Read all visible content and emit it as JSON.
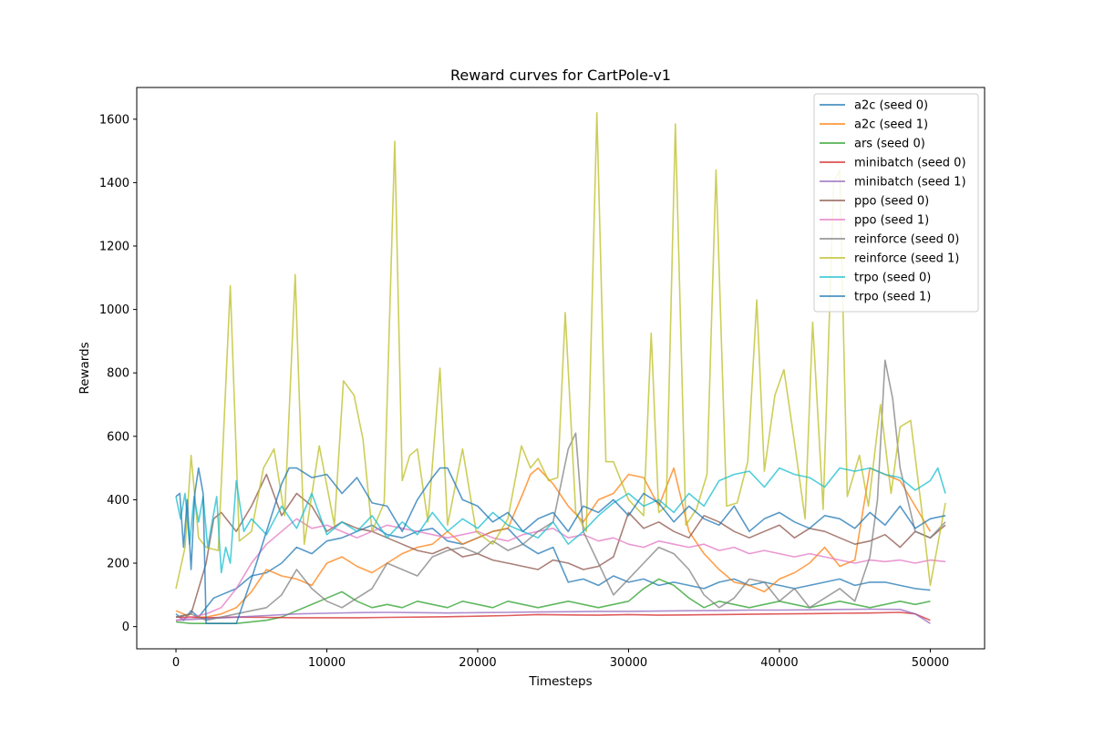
{
  "chart_data": {
    "type": "line",
    "title": "Reward curves for CartPole-v1",
    "xlabel": "Timesteps",
    "ylabel": "Rewards",
    "xlim": [
      -2600,
      53600
    ],
    "ylim": [
      -70,
      1700
    ],
    "xticks": [
      0,
      10000,
      20000,
      30000,
      40000,
      50000
    ],
    "yticks": [
      0,
      200,
      400,
      600,
      800,
      1000,
      1200,
      1400,
      1600
    ],
    "grid": false,
    "legend_position": "top-right",
    "series": [
      {
        "name": "a2c (seed 0)",
        "color": "#1f77b4",
        "x": [
          0,
          500,
          1000,
          1500,
          2000,
          2500,
          3000,
          4000,
          5000,
          6000,
          7000,
          8000,
          9000,
          10000,
          11000,
          12000,
          13000,
          14000,
          15000,
          16000,
          17000,
          18000,
          19000,
          20000,
          21000,
          22000,
          23000,
          24000,
          25000,
          26000,
          27000,
          28000,
          29000,
          30000,
          31000,
          32000,
          33000,
          34000,
          35000,
          36000,
          37000,
          38000,
          39000,
          40000,
          41000,
          42000,
          43000,
          44000,
          45000,
          46000,
          47000,
          48000,
          49000,
          50000
        ],
        "y": [
          40,
          20,
          50,
          30,
          60,
          90,
          100,
          120,
          160,
          170,
          200,
          250,
          230,
          270,
          280,
          300,
          320,
          290,
          280,
          300,
          310,
          270,
          260,
          280,
          300,
          310,
          260,
          230,
          250,
          140,
          150,
          130,
          160,
          140,
          150,
          130,
          140,
          130,
          120,
          140,
          150,
          130,
          140,
          130,
          120,
          130,
          140,
          150,
          130,
          140,
          140,
          130,
          120,
          115
        ]
      },
      {
        "name": "a2c (seed 1)",
        "color": "#ff7f0e",
        "x": [
          0,
          1000,
          2000,
          3000,
          4000,
          5000,
          6000,
          7000,
          8000,
          9000,
          10000,
          11000,
          12000,
          13000,
          14000,
          15000,
          16000,
          17000,
          18000,
          19000,
          20000,
          21000,
          22000,
          23000,
          23500,
          24000,
          25000,
          26000,
          27000,
          28000,
          29000,
          30000,
          31000,
          32000,
          33000,
          34000,
          35000,
          36000,
          37000,
          38000,
          39000,
          40000,
          41000,
          42000,
          43000,
          44000,
          45000,
          46000,
          47000,
          48000,
          49000,
          50000
        ],
        "y": [
          50,
          30,
          30,
          40,
          60,
          110,
          180,
          160,
          150,
          130,
          200,
          220,
          190,
          170,
          200,
          230,
          250,
          260,
          300,
          260,
          280,
          300,
          310,
          420,
          480,
          500,
          450,
          380,
          330,
          400,
          420,
          480,
          470,
          380,
          500,
          300,
          230,
          180,
          140,
          130,
          110,
          150,
          170,
          200,
          250,
          190,
          210,
          500,
          480,
          460,
          380,
          300
        ]
      },
      {
        "name": "ars (seed 0)",
        "color": "#2ca02c",
        "x": [
          0,
          1000,
          2000,
          3000,
          4000,
          5000,
          6000,
          7000,
          8000,
          9000,
          10000,
          11000,
          12000,
          13000,
          14000,
          15000,
          16000,
          17000,
          18000,
          19000,
          20000,
          21000,
          22000,
          23000,
          24000,
          25000,
          26000,
          27000,
          28000,
          29000,
          30000,
          31000,
          32000,
          33000,
          34000,
          35000,
          36000,
          37000,
          38000,
          39000,
          40000,
          41000,
          42000,
          43000,
          44000,
          45000,
          46000,
          47000,
          48000,
          49000,
          50000
        ],
        "y": [
          15,
          10,
          10,
          10,
          10,
          15,
          20,
          30,
          50,
          70,
          90,
          110,
          80,
          60,
          70,
          60,
          80,
          70,
          60,
          80,
          70,
          60,
          80,
          70,
          60,
          70,
          80,
          70,
          60,
          70,
          80,
          120,
          150,
          130,
          90,
          60,
          80,
          70,
          60,
          70,
          80,
          70,
          60,
          70,
          80,
          70,
          60,
          70,
          80,
          70,
          80
        ]
      },
      {
        "name": "minibatch (seed 0)",
        "color": "#d62728",
        "x": [
          0,
          2000,
          4000,
          6000,
          8000,
          10000,
          12000,
          14000,
          16000,
          18000,
          20000,
          22000,
          24000,
          26000,
          28000,
          30000,
          32000,
          34000,
          36000,
          38000,
          40000,
          42000,
          44000,
          46000,
          48000,
          49000,
          50000
        ],
        "y": [
          30,
          28,
          30,
          29,
          28,
          28,
          28,
          29,
          30,
          31,
          33,
          35,
          38,
          37,
          36,
          38,
          36,
          37,
          38,
          39,
          40,
          41,
          42,
          43,
          45,
          40,
          20
        ]
      },
      {
        "name": "minibatch (seed 1)",
        "color": "#9467bd",
        "x": [
          0,
          2000,
          4000,
          6000,
          8000,
          10000,
          12000,
          14000,
          16000,
          18000,
          20000,
          22000,
          24000,
          26000,
          28000,
          30000,
          32000,
          34000,
          36000,
          38000,
          40000,
          42000,
          44000,
          46000,
          48000,
          49000,
          50000
        ],
        "y": [
          20,
          25,
          30,
          35,
          40,
          42,
          44,
          45,
          44,
          43,
          44,
          45,
          46,
          47,
          48,
          48,
          49,
          50,
          51,
          52,
          52,
          53,
          54,
          55,
          54,
          40,
          10
        ]
      },
      {
        "name": "ppo (seed 0)",
        "color": "#8c564b",
        "x": [
          0,
          1000,
          2000,
          2500,
          3000,
          4000,
          5000,
          6000,
          7000,
          8000,
          9000,
          10000,
          11000,
          12000,
          13000,
          14000,
          15000,
          16000,
          17000,
          18000,
          19000,
          20000,
          21000,
          22000,
          23000,
          24000,
          25000,
          26000,
          27000,
          28000,
          29000,
          30000,
          31000,
          32000,
          33000,
          34000,
          35000,
          36000,
          37000,
          38000,
          39000,
          40000,
          41000,
          42000,
          43000,
          44000,
          45000,
          46000,
          47000,
          48000,
          49000,
          50000,
          51000
        ],
        "y": [
          30,
          40,
          200,
          340,
          360,
          300,
          380,
          480,
          350,
          420,
          380,
          300,
          330,
          310,
          300,
          280,
          260,
          240,
          230,
          250,
          220,
          230,
          210,
          200,
          190,
          180,
          210,
          200,
          180,
          190,
          220,
          360,
          310,
          330,
          300,
          280,
          350,
          330,
          300,
          280,
          300,
          320,
          280,
          310,
          300,
          280,
          260,
          270,
          290,
          250,
          300,
          280,
          320
        ]
      },
      {
        "name": "ppo (seed 1)",
        "color": "#e377c2",
        "x": [
          0,
          1000,
          2000,
          3000,
          4000,
          5000,
          6000,
          7000,
          8000,
          9000,
          10000,
          11000,
          12000,
          13000,
          14000,
          15000,
          16000,
          17000,
          18000,
          19000,
          20000,
          21000,
          22000,
          23000,
          24000,
          25000,
          26000,
          27000,
          28000,
          29000,
          30000,
          31000,
          32000,
          33000,
          34000,
          35000,
          36000,
          37000,
          38000,
          39000,
          40000,
          41000,
          42000,
          43000,
          44000,
          45000,
          46000,
          47000,
          48000,
          49000,
          50000,
          51000
        ],
        "y": [
          20,
          30,
          40,
          60,
          120,
          200,
          260,
          300,
          340,
          310,
          320,
          300,
          280,
          300,
          320,
          310,
          300,
          290,
          280,
          290,
          300,
          280,
          270,
          290,
          300,
          310,
          280,
          290,
          270,
          280,
          260,
          250,
          270,
          260,
          250,
          260,
          240,
          250,
          230,
          240,
          230,
          220,
          230,
          220,
          210,
          200,
          210,
          205,
          210,
          200,
          210,
          205
        ]
      },
      {
        "name": "reinforce (seed 0)",
        "color": "#7f7f7f",
        "x": [
          0,
          1000,
          2000,
          3000,
          4000,
          5000,
          6000,
          7000,
          8000,
          9000,
          10000,
          11000,
          12000,
          13000,
          14000,
          15000,
          16000,
          17000,
          18000,
          19000,
          20000,
          21000,
          22000,
          23000,
          24000,
          25000,
          26000,
          26500,
          27000,
          28000,
          29000,
          30000,
          31000,
          32000,
          33000,
          34000,
          35000,
          36000,
          37000,
          38000,
          39000,
          40000,
          41000,
          42000,
          43000,
          44000,
          45000,
          46000,
          46500,
          47000,
          47500,
          48000,
          49000,
          50000,
          51000
        ],
        "y": [
          30,
          40,
          20,
          30,
          40,
          50,
          60,
          100,
          180,
          120,
          80,
          60,
          90,
          120,
          200,
          180,
          160,
          220,
          240,
          250,
          230,
          270,
          240,
          260,
          300,
          330,
          560,
          610,
          300,
          200,
          100,
          150,
          200,
          250,
          230,
          180,
          100,
          60,
          90,
          150,
          140,
          80,
          120,
          60,
          90,
          120,
          80,
          220,
          400,
          840,
          720,
          500,
          300,
          280,
          330
        ]
      },
      {
        "name": "reinforce (seed 1)",
        "color": "#bcbd22",
        "x": [
          0,
          600,
          1000,
          1500,
          2000,
          2800,
          3600,
          4200,
          5000,
          5800,
          6500,
          7200,
          7900,
          8500,
          9500,
          10500,
          11100,
          11800,
          12400,
          13000,
          13800,
          14500,
          15000,
          15500,
          16000,
          16700,
          17500,
          18000,
          19000,
          19900,
          21000,
          22000,
          22900,
          23500,
          24000,
          24700,
          25300,
          25800,
          26500,
          27200,
          27900,
          28500,
          29000,
          30000,
          31000,
          31500,
          32000,
          32500,
          33100,
          33800,
          34500,
          35200,
          35800,
          36500,
          37200,
          37900,
          38500,
          39000,
          39700,
          40300,
          41000,
          41700,
          42200,
          42900,
          43600,
          44000,
          44500,
          45300,
          45900,
          46700,
          47400,
          48000,
          48700,
          49400,
          50000,
          51000
        ],
        "y": [
          120,
          250,
          540,
          280,
          250,
          240,
          1075,
          270,
          300,
          500,
          560,
          350,
          1110,
          260,
          570,
          320,
          775,
          730,
          590,
          300,
          390,
          1530,
          460,
          540,
          560,
          330,
          815,
          320,
          560,
          300,
          260,
          340,
          570,
          500,
          530,
          460,
          470,
          990,
          360,
          300,
          1620,
          520,
          520,
          400,
          350,
          925,
          360,
          380,
          1585,
          320,
          370,
          480,
          1440,
          380,
          390,
          520,
          1030,
          490,
          730,
          810,
          580,
          340,
          960,
          370,
          1400,
          1440,
          410,
          540,
          380,
          700,
          420,
          630,
          650,
          380,
          130,
          390
        ]
      },
      {
        "name": "trpo (seed 0)",
        "color": "#17becf",
        "x": [
          0,
          300,
          600,
          900,
          1200,
          1500,
          1800,
          2100,
          2400,
          2700,
          3000,
          3300,
          3600,
          4000,
          4500,
          5000,
          6000,
          7000,
          8000,
          9000,
          10000,
          11000,
          12000,
          13000,
          14000,
          15000,
          16000,
          17000,
          18000,
          19000,
          20000,
          21000,
          22000,
          23000,
          24000,
          25000,
          26000,
          27000,
          28000,
          29000,
          30000,
          31000,
          32000,
          33000,
          34000,
          35000,
          36000,
          37000,
          38000,
          39000,
          40000,
          41000,
          42000,
          43000,
          44000,
          45000,
          46000,
          47000,
          48000,
          49000,
          50000,
          50500,
          51000
        ],
        "y": [
          410,
          340,
          420,
          260,
          410,
          330,
          410,
          250,
          330,
          410,
          170,
          250,
          200,
          460,
          300,
          340,
          290,
          380,
          310,
          420,
          290,
          330,
          300,
          350,
          280,
          330,
          290,
          360,
          300,
          340,
          310,
          360,
          320,
          300,
          280,
          330,
          260,
          300,
          350,
          390,
          420,
          380,
          400,
          360,
          420,
          380,
          460,
          480,
          490,
          440,
          500,
          480,
          470,
          440,
          500,
          490,
          500,
          480,
          470,
          430,
          460,
          500,
          420
        ]
      },
      {
        "name": "trpo (seed 1)",
        "color": "#1f77b4",
        "x": [
          0,
          250,
          500,
          750,
          1000,
          1250,
          1500,
          1800,
          2000,
          2500,
          3000,
          4000,
          5000,
          6000,
          7000,
          7500,
          8000,
          9000,
          10000,
          11000,
          12000,
          13000,
          14000,
          15000,
          16000,
          17000,
          17500,
          18000,
          19000,
          20000,
          21000,
          22000,
          23000,
          24000,
          25000,
          26000,
          27000,
          28000,
          29000,
          30000,
          31000,
          32000,
          33000,
          34000,
          35000,
          36000,
          37000,
          38000,
          39000,
          40000,
          41000,
          42000,
          43000,
          44000,
          45000,
          46000,
          47000,
          48000,
          49000,
          50000,
          51000
        ],
        "y": [
          410,
          420,
          250,
          400,
          180,
          420,
          500,
          420,
          10,
          10,
          10,
          10,
          150,
          300,
          450,
          500,
          500,
          470,
          480,
          420,
          470,
          390,
          380,
          300,
          400,
          470,
          500,
          500,
          400,
          380,
          330,
          360,
          300,
          340,
          360,
          300,
          380,
          360,
          400,
          350,
          420,
          390,
          330,
          380,
          340,
          320,
          380,
          300,
          340,
          360,
          330,
          310,
          350,
          340,
          310,
          360,
          320,
          380,
          310,
          340,
          350
        ]
      }
    ]
  }
}
